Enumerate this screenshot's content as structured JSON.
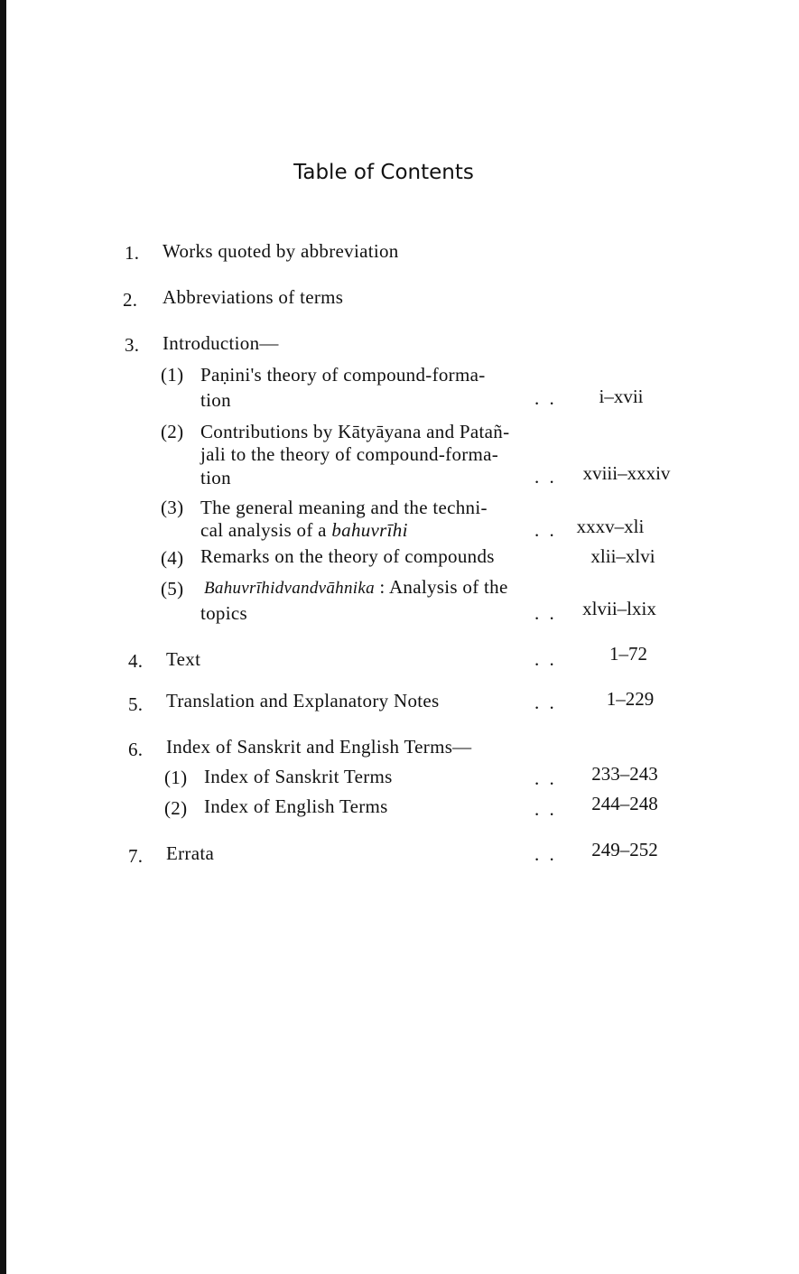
{
  "title": "Table of Contents",
  "entries": [
    {
      "num": "1.",
      "label": "Works quoted by abbreviation"
    },
    {
      "num": "2.",
      "label": "Abbreviations of terms"
    },
    {
      "num": "3.",
      "label": "Introduction—",
      "subs": [
        {
          "num": "(1)",
          "lines": [
            "Paṇini's  theory  of  compound-forma-",
            "tion"
          ],
          "pages": "i–xvii"
        },
        {
          "num": "(2)",
          "lines": [
            "Contributions by Kātyāyana and Patañ-",
            "jali to the theory of compound-forma-",
            "tion"
          ],
          "pages": "xviii–xxxiv"
        },
        {
          "num": "(3)",
          "lines": [
            "The general meaning and the techni-",
            "cal analysis of a "
          ],
          "italic": "bahuvrīhi",
          "pages": "xxxv–xli"
        },
        {
          "num": "(4)",
          "lines": [
            "Remarks on the theory of compounds"
          ],
          "pages": "xlii–xlvi"
        },
        {
          "num": "(5)",
          "italic": "Bahuvrīhidvandvāhnika",
          "lines": [
            " : Analysis of the",
            "topics"
          ],
          "pages": "xlvii–lxix"
        }
      ]
    },
    {
      "num": "4.",
      "label": "Text",
      "pages": "1–72"
    },
    {
      "num": "5.",
      "label": "Translation and Explanatory Notes",
      "pages": "1–229"
    },
    {
      "num": "6.",
      "label": "Index of Sanskrit and English Terms—",
      "subs": [
        {
          "num": "(1)",
          "lines": [
            "Index of Sanskrit Terms"
          ],
          "pages": "233–243"
        },
        {
          "num": "(2)",
          "lines": [
            "Index of English Terms"
          ],
          "pages": "244–248"
        }
      ]
    },
    {
      "num": "7.",
      "label": "Errata",
      "pages": "249–252"
    }
  ],
  "leader": ". ."
}
